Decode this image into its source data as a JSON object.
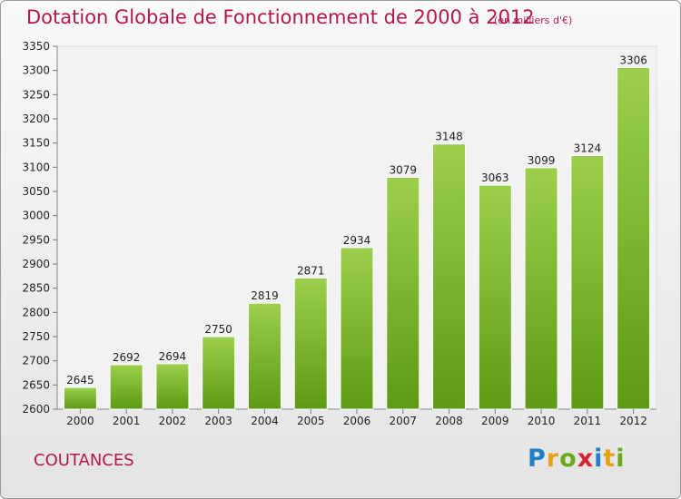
{
  "header": {
    "title": "Dotation Globale de Fonctionnement de 2000 à 2012",
    "subtitle": "(en milliers d'€)"
  },
  "footer": {
    "commune": "COUTANCES",
    "brand_letters": [
      {
        "ch": "P",
        "color": "#1f7fc7"
      },
      {
        "ch": "r",
        "color": "#e8a21a"
      },
      {
        "ch": "o",
        "color": "#6aaa1a"
      },
      {
        "ch": "x",
        "color": "#d6242f"
      },
      {
        "ch": "i",
        "color": "#1f7fc7"
      },
      {
        "ch": "t",
        "color": "#e8a21a"
      },
      {
        "ch": "i",
        "color": "#6aaa1a"
      }
    ]
  },
  "colors": {
    "title": "#b5174d",
    "bar_top": "#9ccf4d",
    "bar_bottom": "#5e9a14"
  },
  "chart_data": {
    "type": "bar",
    "categories": [
      "2000",
      "2001",
      "2002",
      "2003",
      "2004",
      "2005",
      "2006",
      "2007",
      "2008",
      "2009",
      "2010",
      "2011",
      "2012"
    ],
    "values": [
      2645,
      2692,
      2694,
      2750,
      2819,
      2871,
      2934,
      3079,
      3148,
      3063,
      3099,
      3124,
      3306
    ],
    "title": "Dotation Globale de Fonctionnement de 2000 à 2012",
    "subtitle": "(en milliers d'€)",
    "xlabel": "",
    "ylabel": "",
    "ylim": [
      2600,
      3350
    ],
    "yticks": [
      2600,
      2650,
      2700,
      2750,
      2800,
      2850,
      2900,
      2950,
      3000,
      3050,
      3100,
      3150,
      3200,
      3250,
      3300,
      3350
    ],
    "grid": false,
    "legend": "none"
  }
}
